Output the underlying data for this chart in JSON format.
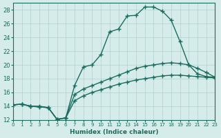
{
  "xlabel": "Humidex (Indice chaleur)",
  "xlim": [
    0,
    23
  ],
  "ylim": [
    12,
    29
  ],
  "xticks": [
    0,
    1,
    2,
    3,
    4,
    5,
    6,
    7,
    8,
    9,
    10,
    11,
    12,
    13,
    14,
    15,
    16,
    17,
    18,
    19,
    20,
    21,
    22,
    23
  ],
  "yticks": [
    12,
    14,
    16,
    18,
    20,
    22,
    24,
    26,
    28
  ],
  "background_color": "#d6ecea",
  "grid_color": "#b0d0ce",
  "line_color": "#1a6b5e",
  "line1_x": [
    0,
    1,
    2,
    3,
    4,
    5,
    6,
    7,
    8,
    9,
    10,
    11,
    12,
    13,
    14,
    15,
    16,
    17,
    18,
    19,
    20,
    21,
    22,
    23
  ],
  "line1_y": [
    14.2,
    14.3,
    14.0,
    14.0,
    13.8,
    12.1,
    12.3,
    17.0,
    19.7,
    20.0,
    21.5,
    24.8,
    25.2,
    27.1,
    27.2,
    28.4,
    28.4,
    27.8,
    26.5,
    23.4,
    20.0,
    18.7,
    18.3,
    18.2
  ],
  "line2_x": [
    0,
    1,
    2,
    3,
    4,
    5,
    6,
    7,
    8,
    9,
    10,
    11,
    12,
    13,
    14,
    15,
    16,
    17,
    18,
    19,
    20,
    21,
    22,
    23
  ],
  "line2_y": [
    14.2,
    14.3,
    14.0,
    13.9,
    13.8,
    12.1,
    12.3,
    15.7,
    16.5,
    17.0,
    17.5,
    18.0,
    18.5,
    19.0,
    19.5,
    19.8,
    20.0,
    20.2,
    20.3,
    20.2,
    20.0,
    19.5,
    18.9,
    18.2
  ],
  "line3_x": [
    0,
    1,
    2,
    3,
    4,
    5,
    6,
    7,
    8,
    9,
    10,
    11,
    12,
    13,
    14,
    15,
    16,
    17,
    18,
    19,
    20,
    21,
    22,
    23
  ],
  "line3_y": [
    14.2,
    14.3,
    14.0,
    13.9,
    13.8,
    12.1,
    12.3,
    14.8,
    15.5,
    16.0,
    16.4,
    16.8,
    17.2,
    17.5,
    17.8,
    18.0,
    18.2,
    18.4,
    18.5,
    18.5,
    18.4,
    18.3,
    18.2,
    18.1
  ]
}
